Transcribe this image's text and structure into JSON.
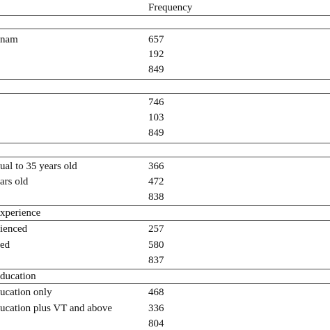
{
  "header": {
    "frequency_label": "Frequency"
  },
  "sections": [
    {
      "heading": "",
      "rows": [
        {
          "label": "nam",
          "value": "657"
        },
        {
          "label": "",
          "value": "192"
        },
        {
          "label": "",
          "value": "849"
        }
      ]
    },
    {
      "heading": "",
      "rows": [
        {
          "label": "",
          "value": "746"
        },
        {
          "label": "",
          "value": "103"
        },
        {
          "label": "",
          "value": "849"
        }
      ]
    },
    {
      "heading": "",
      "rows": [
        {
          "label": "ual to 35 years old",
          "value": "366"
        },
        {
          "label": "ars old",
          "value": "472"
        },
        {
          "label": "",
          "value": "838"
        }
      ]
    },
    {
      "heading": "xperience",
      "rows": [
        {
          "label": "ienced",
          "value": "257"
        },
        {
          "label": "ed",
          "value": "580"
        },
        {
          "label": "",
          "value": "837"
        }
      ]
    },
    {
      "heading": "ducation",
      "rows": [
        {
          "label": "ucation only",
          "value": "468"
        },
        {
          "label": "ucation plus VT and above",
          "value": "336"
        },
        {
          "label": "",
          "value": "804"
        }
      ]
    }
  ]
}
